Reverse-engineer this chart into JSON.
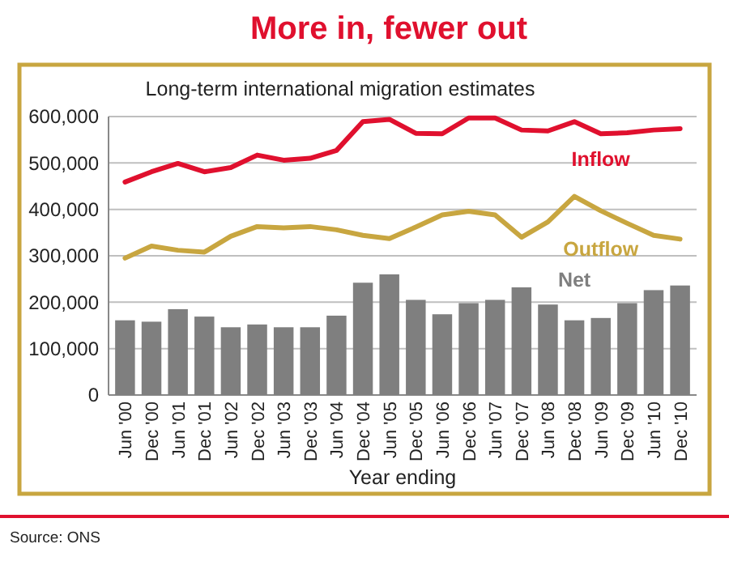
{
  "chart_data": {
    "type": "bar",
    "title": "More in, fewer out",
    "subtitle": "Long-term international migration estimates",
    "xlabel": "Year ending",
    "categories": [
      "Jun '00",
      "Dec '00",
      "Jun '01",
      "Dec '01",
      "Jun '02",
      "Dec '02",
      "Jun '03",
      "Dec '03",
      "Jun '04",
      "Dec '04",
      "Jun '05",
      "Dec '05",
      "Jun '06",
      "Dec '06",
      "Jun '07",
      "Dec '07",
      "Jun '08",
      "Dec '08",
      "Jun '09",
      "Dec '09",
      "Jun '10",
      "Dec '10"
    ],
    "series": [
      {
        "name": "Net",
        "color": "#7f7f7f",
        "values": [
          161000,
          158000,
          185000,
          169000,
          146000,
          152000,
          146000,
          146000,
          171000,
          242000,
          260000,
          205000,
          174000,
          198000,
          205000,
          232000,
          195000,
          161000,
          166000,
          198000,
          226000,
          236000
        ]
      },
      {
        "name": "Inflow",
        "type": "line",
        "color": "#e0102e",
        "values": [
          459000,
          481000,
          499000,
          481000,
          490000,
          517000,
          506000,
          510000,
          527000,
          589000,
          594000,
          564000,
          563000,
          597000,
          597000,
          571000,
          569000,
          589000,
          563000,
          565000,
          571000,
          574000
        ]
      },
      {
        "name": "Outflow",
        "type": "line",
        "color": "#c8a640",
        "values": [
          295000,
          321000,
          312000,
          308000,
          342000,
          363000,
          360000,
          363000,
          356000,
          344000,
          337000,
          362000,
          388000,
          396000,
          388000,
          340000,
          373000,
          428000,
          397000,
          370000,
          344000,
          336000
        ]
      }
    ],
    "ylim": [
      0,
      600000
    ],
    "yticks": [
      {
        "value": 0,
        "label": "0"
      },
      {
        "value": 100000,
        "label": "100,000"
      },
      {
        "value": 200000,
        "label": "200,000"
      },
      {
        "value": 300000,
        "label": "300,000"
      },
      {
        "value": 400000,
        "label": "400,000"
      },
      {
        "value": 500000,
        "label": "500,000"
      },
      {
        "value": 600000,
        "label": "600,000"
      }
    ],
    "grid": "y",
    "annotations": [
      "Source: ONS"
    ]
  }
}
